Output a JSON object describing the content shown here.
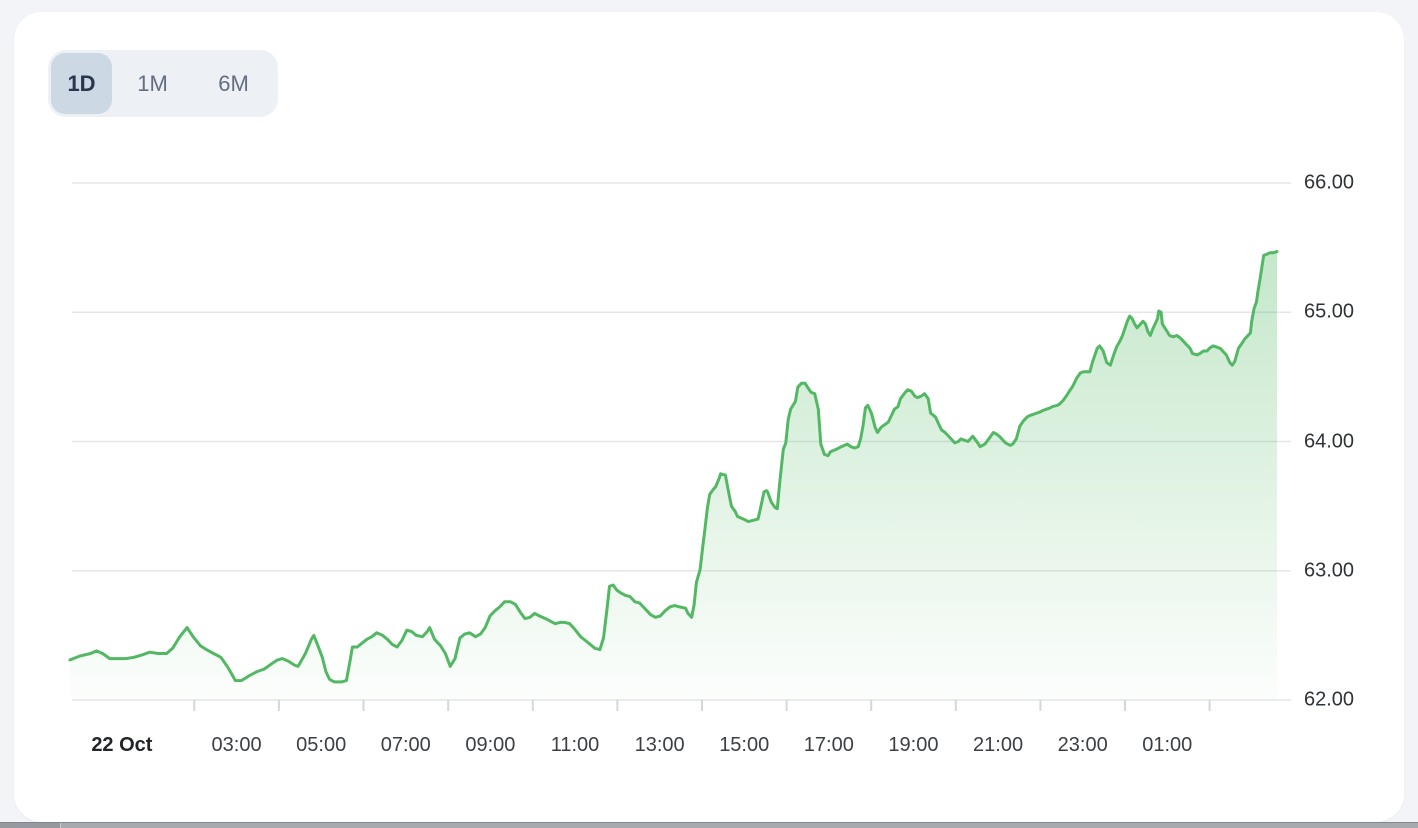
{
  "page": {
    "background": "#f2f4f7",
    "bottom_bar_color": "#a7abb0"
  },
  "card": {
    "background": "#ffffff"
  },
  "range_switcher": {
    "group_bg": "#edf0f5",
    "active_bg": "#ccd9e5",
    "active_text": "#2a3550",
    "inactive_text": "#646e80",
    "options": [
      {
        "label": "1D",
        "active": true
      },
      {
        "label": "1M",
        "active": false
      },
      {
        "label": "6M",
        "active": false
      }
    ]
  },
  "chart_data": {
    "type": "area",
    "title": "",
    "series_name": "price",
    "legend": "none",
    "grid": "horizontal",
    "line_color": "#52b863",
    "fill_color": "#52b863",
    "grid_color": "#e4e6e8",
    "tick_color": "#d5d7d9",
    "x_date_label": "22 Oct",
    "x_tick_labels": [
      "03:00",
      "05:00",
      "07:00",
      "09:00",
      "11:00",
      "13:00",
      "15:00",
      "17:00",
      "19:00",
      "21:00",
      "23:00",
      "01:00"
    ],
    "y_tick_labels": [
      "66.00",
      "65.00",
      "64.00",
      "63.00",
      "62.00"
    ],
    "y_ticks": [
      66,
      65,
      64,
      63,
      62
    ],
    "ylim": [
      61.96,
      66.13
    ],
    "x_unit": "fraction_of_range",
    "x_range_note": "approx 23:00 21 Oct to 03:30 23 Oct",
    "points": [
      [
        0.0,
        62.31
      ],
      [
        0.008,
        62.34
      ],
      [
        0.017,
        62.36
      ],
      [
        0.022,
        62.38
      ],
      [
        0.027,
        62.36
      ],
      [
        0.033,
        62.32
      ],
      [
        0.04,
        62.32
      ],
      [
        0.046,
        62.32
      ],
      [
        0.053,
        62.33
      ],
      [
        0.06,
        62.35
      ],
      [
        0.066,
        62.37
      ],
      [
        0.073,
        62.36
      ],
      [
        0.08,
        62.36
      ],
      [
        0.085,
        62.4
      ],
      [
        0.091,
        62.49
      ],
      [
        0.097,
        62.56
      ],
      [
        0.102,
        62.49
      ],
      [
        0.108,
        62.42
      ],
      [
        0.113,
        62.39
      ],
      [
        0.119,
        62.36
      ],
      [
        0.125,
        62.33
      ],
      [
        0.131,
        62.25
      ],
      [
        0.137,
        62.15
      ],
      [
        0.142,
        62.15
      ],
      [
        0.149,
        62.19
      ],
      [
        0.155,
        62.22
      ],
      [
        0.161,
        62.24
      ],
      [
        0.167,
        62.28
      ],
      [
        0.172,
        62.31
      ],
      [
        0.176,
        62.32
      ],
      [
        0.181,
        62.3
      ],
      [
        0.186,
        62.27
      ],
      [
        0.189,
        62.26
      ],
      [
        0.195,
        62.36
      ],
      [
        0.2,
        62.47
      ],
      [
        0.202,
        62.5
      ],
      [
        0.205,
        62.43
      ],
      [
        0.209,
        62.33
      ],
      [
        0.212,
        62.22
      ],
      [
        0.215,
        62.16
      ],
      [
        0.219,
        62.14
      ],
      [
        0.222,
        62.14
      ],
      [
        0.225,
        62.14
      ],
      [
        0.229,
        62.15
      ],
      [
        0.232,
        62.3
      ],
      [
        0.234,
        62.41
      ],
      [
        0.238,
        62.41
      ],
      [
        0.242,
        62.44
      ],
      [
        0.246,
        62.47
      ],
      [
        0.25,
        62.49
      ],
      [
        0.254,
        62.52
      ],
      [
        0.259,
        62.5
      ],
      [
        0.263,
        62.47
      ],
      [
        0.267,
        62.43
      ],
      [
        0.271,
        62.41
      ],
      [
        0.275,
        62.46
      ],
      [
        0.279,
        62.54
      ],
      [
        0.283,
        62.53
      ],
      [
        0.287,
        62.5
      ],
      [
        0.292,
        62.49
      ],
      [
        0.296,
        62.53
      ],
      [
        0.298,
        62.56
      ],
      [
        0.302,
        62.47
      ],
      [
        0.307,
        62.42
      ],
      [
        0.311,
        62.36
      ],
      [
        0.315,
        62.26
      ],
      [
        0.319,
        62.32
      ],
      [
        0.323,
        62.48
      ],
      [
        0.327,
        62.51
      ],
      [
        0.331,
        62.52
      ],
      [
        0.336,
        62.49
      ],
      [
        0.34,
        62.51
      ],
      [
        0.344,
        62.56
      ],
      [
        0.348,
        62.65
      ],
      [
        0.352,
        62.69
      ],
      [
        0.356,
        62.72
      ],
      [
        0.36,
        62.76
      ],
      [
        0.365,
        62.76
      ],
      [
        0.369,
        62.74
      ],
      [
        0.373,
        62.68
      ],
      [
        0.377,
        62.63
      ],
      [
        0.381,
        62.64
      ],
      [
        0.385,
        62.67
      ],
      [
        0.389,
        62.65
      ],
      [
        0.394,
        62.63
      ],
      [
        0.398,
        62.61
      ],
      [
        0.402,
        62.59
      ],
      [
        0.406,
        62.6
      ],
      [
        0.41,
        62.6
      ],
      [
        0.414,
        62.59
      ],
      [
        0.418,
        62.55
      ],
      [
        0.423,
        62.49
      ],
      [
        0.427,
        62.46
      ],
      [
        0.431,
        62.43
      ],
      [
        0.435,
        62.4
      ],
      [
        0.439,
        62.39
      ],
      [
        0.442,
        62.48
      ],
      [
        0.445,
        62.71
      ],
      [
        0.447,
        62.88
      ],
      [
        0.45,
        62.89
      ],
      [
        0.453,
        62.85
      ],
      [
        0.456,
        62.83
      ],
      [
        0.46,
        62.81
      ],
      [
        0.464,
        62.8
      ],
      [
        0.468,
        62.76
      ],
      [
        0.472,
        62.75
      ],
      [
        0.476,
        62.71
      ],
      [
        0.481,
        62.66
      ],
      [
        0.485,
        62.64
      ],
      [
        0.489,
        62.65
      ],
      [
        0.493,
        62.69
      ],
      [
        0.497,
        62.72
      ],
      [
        0.501,
        62.73
      ],
      [
        0.505,
        62.72
      ],
      [
        0.51,
        62.71
      ],
      [
        0.512,
        62.67
      ],
      [
        0.515,
        62.64
      ],
      [
        0.517,
        62.73
      ],
      [
        0.519,
        62.91
      ],
      [
        0.522,
        63.01
      ],
      [
        0.524,
        63.17
      ],
      [
        0.526,
        63.32
      ],
      [
        0.528,
        63.48
      ],
      [
        0.53,
        63.59
      ],
      [
        0.533,
        63.63
      ],
      [
        0.535,
        63.65
      ],
      [
        0.538,
        63.72
      ],
      [
        0.539,
        63.75
      ],
      [
        0.543,
        63.74
      ],
      [
        0.545,
        63.64
      ],
      [
        0.548,
        63.5
      ],
      [
        0.551,
        63.46
      ],
      [
        0.553,
        63.42
      ],
      [
        0.558,
        63.4
      ],
      [
        0.562,
        63.38
      ],
      [
        0.566,
        63.39
      ],
      [
        0.57,
        63.4
      ],
      [
        0.572,
        63.48
      ],
      [
        0.575,
        63.61
      ],
      [
        0.577,
        63.62
      ],
      [
        0.578,
        63.61
      ],
      [
        0.581,
        63.53
      ],
      [
        0.584,
        63.49
      ],
      [
        0.586,
        63.48
      ],
      [
        0.588,
        63.68
      ],
      [
        0.591,
        63.94
      ],
      [
        0.593,
        63.99
      ],
      [
        0.595,
        64.17
      ],
      [
        0.597,
        64.25
      ],
      [
        0.601,
        64.31
      ],
      [
        0.603,
        64.42
      ],
      [
        0.606,
        64.45
      ],
      [
        0.609,
        64.45
      ],
      [
        0.611,
        64.42
      ],
      [
        0.614,
        64.38
      ],
      [
        0.617,
        64.37
      ],
      [
        0.62,
        64.25
      ],
      [
        0.622,
        63.98
      ],
      [
        0.625,
        63.9
      ],
      [
        0.628,
        63.89
      ],
      [
        0.63,
        63.92
      ],
      [
        0.635,
        63.94
      ],
      [
        0.639,
        63.96
      ],
      [
        0.644,
        63.98
      ],
      [
        0.647,
        63.96
      ],
      [
        0.65,
        63.95
      ],
      [
        0.653,
        63.96
      ],
      [
        0.655,
        64.02
      ],
      [
        0.657,
        64.12
      ],
      [
        0.659,
        64.26
      ],
      [
        0.661,
        64.28
      ],
      [
        0.664,
        64.22
      ],
      [
        0.667,
        64.11
      ],
      [
        0.669,
        64.07
      ],
      [
        0.672,
        64.11
      ],
      [
        0.675,
        64.13
      ],
      [
        0.678,
        64.15
      ],
      [
        0.68,
        64.19
      ],
      [
        0.683,
        64.25
      ],
      [
        0.686,
        64.27
      ],
      [
        0.688,
        64.33
      ],
      [
        0.692,
        64.38
      ],
      [
        0.694,
        64.4
      ],
      [
        0.697,
        64.39
      ],
      [
        0.7,
        64.35
      ],
      [
        0.702,
        64.34
      ],
      [
        0.705,
        64.35
      ],
      [
        0.708,
        64.37
      ],
      [
        0.711,
        64.33
      ],
      [
        0.713,
        64.22
      ],
      [
        0.717,
        64.19
      ],
      [
        0.719,
        64.15
      ],
      [
        0.722,
        64.09
      ],
      [
        0.725,
        64.07
      ],
      [
        0.727,
        64.05
      ],
      [
        0.73,
        64.02
      ],
      [
        0.733,
        63.99
      ],
      [
        0.736,
        64.0
      ],
      [
        0.738,
        64.02
      ],
      [
        0.741,
        64.01
      ],
      [
        0.744,
        64.0
      ],
      [
        0.746,
        64.02
      ],
      [
        0.748,
        64.04
      ],
      [
        0.752,
        63.99
      ],
      [
        0.754,
        63.96
      ],
      [
        0.758,
        63.98
      ],
      [
        0.762,
        64.03
      ],
      [
        0.765,
        64.07
      ],
      [
        0.767,
        64.06
      ],
      [
        0.77,
        64.04
      ],
      [
        0.772,
        64.02
      ],
      [
        0.775,
        63.99
      ],
      [
        0.779,
        63.97
      ],
      [
        0.781,
        63.98
      ],
      [
        0.784,
        64.02
      ],
      [
        0.787,
        64.12
      ],
      [
        0.79,
        64.16
      ],
      [
        0.793,
        64.19
      ],
      [
        0.795,
        64.2
      ],
      [
        0.798,
        64.21
      ],
      [
        0.801,
        64.22
      ],
      [
        0.804,
        64.23
      ],
      [
        0.806,
        64.24
      ],
      [
        0.809,
        64.25
      ],
      [
        0.812,
        64.26
      ],
      [
        0.814,
        64.27
      ],
      [
        0.818,
        64.28
      ],
      [
        0.82,
        64.29
      ],
      [
        0.823,
        64.32
      ],
      [
        0.826,
        64.36
      ],
      [
        0.828,
        64.39
      ],
      [
        0.831,
        64.43
      ],
      [
        0.834,
        64.49
      ],
      [
        0.837,
        64.53
      ],
      [
        0.84,
        64.54
      ],
      [
        0.845,
        64.54
      ],
      [
        0.847,
        64.61
      ],
      [
        0.851,
        64.72
      ],
      [
        0.853,
        64.74
      ],
      [
        0.856,
        64.7
      ],
      [
        0.859,
        64.61
      ],
      [
        0.862,
        64.59
      ],
      [
        0.864,
        64.65
      ],
      [
        0.867,
        64.73
      ],
      [
        0.87,
        64.78
      ],
      [
        0.872,
        64.82
      ],
      [
        0.876,
        64.93
      ],
      [
        0.878,
        64.97
      ],
      [
        0.88,
        64.95
      ],
      [
        0.882,
        64.91
      ],
      [
        0.884,
        64.88
      ],
      [
        0.886,
        64.9
      ],
      [
        0.889,
        64.93
      ],
      [
        0.891,
        64.91
      ],
      [
        0.893,
        64.85
      ],
      [
        0.895,
        64.82
      ],
      [
        0.897,
        64.87
      ],
      [
        0.901,
        64.95
      ],
      [
        0.902,
        65.01
      ],
      [
        0.904,
        65.0
      ],
      [
        0.905,
        64.91
      ],
      [
        0.909,
        64.85
      ],
      [
        0.911,
        64.82
      ],
      [
        0.914,
        64.81
      ],
      [
        0.917,
        64.82
      ],
      [
        0.92,
        64.8
      ],
      [
        0.922,
        64.78
      ],
      [
        0.925,
        64.75
      ],
      [
        0.928,
        64.72
      ],
      [
        0.93,
        64.68
      ],
      [
        0.934,
        64.67
      ],
      [
        0.936,
        64.68
      ],
      [
        0.939,
        64.7
      ],
      [
        0.942,
        64.7
      ],
      [
        0.944,
        64.72
      ],
      [
        0.947,
        64.74
      ],
      [
        0.95,
        64.73
      ],
      [
        0.953,
        64.72
      ],
      [
        0.955,
        64.7
      ],
      [
        0.958,
        64.67
      ],
      [
        0.961,
        64.61
      ],
      [
        0.963,
        64.59
      ],
      [
        0.965,
        64.62
      ],
      [
        0.968,
        64.72
      ],
      [
        0.971,
        64.76
      ],
      [
        0.973,
        64.79
      ],
      [
        0.975,
        64.81
      ],
      [
        0.978,
        64.84
      ],
      [
        0.979,
        64.93
      ],
      [
        0.981,
        65.03
      ],
      [
        0.983,
        65.08
      ],
      [
        0.984,
        65.15
      ],
      [
        0.986,
        65.26
      ],
      [
        0.988,
        65.38
      ],
      [
        0.989,
        65.44
      ],
      [
        0.992,
        65.45
      ],
      [
        0.994,
        65.46
      ],
      [
        0.997,
        65.46
      ],
      [
        1.0,
        65.47
      ]
    ]
  }
}
